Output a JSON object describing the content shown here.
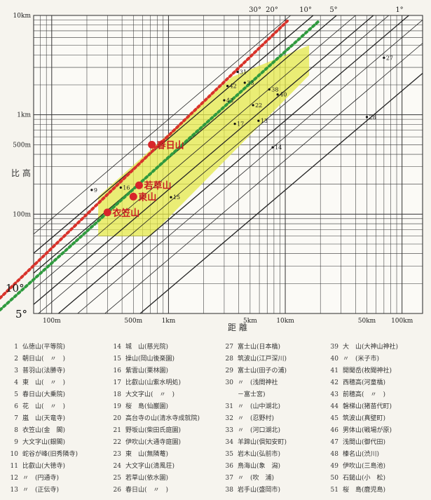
{
  "chart_data": {
    "type": "scatter",
    "xlabel": "距 離",
    "ylabel": "比 高",
    "x_scale": "log",
    "y_scale": "log",
    "xlim": [
      70,
      150000
    ],
    "ylim": [
      10,
      10000
    ],
    "x_tick_labels": [
      {
        "value": 100,
        "label": "100m"
      },
      {
        "value": 500,
        "label": "500m"
      },
      {
        "value": 1000,
        "label": "1km"
      },
      {
        "value": 5000,
        "label": "5km"
      },
      {
        "value": 10000,
        "label": "10km"
      },
      {
        "value": 50000,
        "label": "50km"
      },
      {
        "value": 100000,
        "label": "100km"
      }
    ],
    "y_tick_labels": [
      {
        "value": 10000,
        "label": "10km"
      },
      {
        "value": 1000,
        "label": "1km"
      },
      {
        "value": 500,
        "label": "500m"
      },
      {
        "value": 100,
        "label": "100m"
      }
    ],
    "angle_lines": [
      {
        "label": "30°",
        "ratio": 0.577
      },
      {
        "label": "20°",
        "ratio": 0.364
      },
      {
        "label": "10°",
        "ratio": 0.176
      },
      {
        "label": "5°",
        "ratio": 0.0875
      },
      {
        "label": "1°",
        "ratio": 0.01745
      }
    ],
    "dotted_lines": [
      {
        "label": "10°",
        "color": "#d8322a"
      },
      {
        "label": "5°",
        "color": "#2f9a3e"
      }
    ],
    "highlight_band": {
      "color": "#e4e84a"
    },
    "highlighted_points": [
      {
        "name": "春日山",
        "x": 720,
        "y": 500
      },
      {
        "name": "若草山",
        "x": 560,
        "y": 195
      },
      {
        "name": "東山",
        "x": 500,
        "y": 150
      },
      {
        "name": "衣笠山",
        "x": 300,
        "y": 104
      }
    ],
    "points": [
      {
        "label": "9",
        "x": 220,
        "y": 175
      },
      {
        "label": "14",
        "x": 7800,
        "y": 470
      },
      {
        "label": "15",
        "x": 1050,
        "y": 148
      },
      {
        "label": "16",
        "x": 390,
        "y": 185
      },
      {
        "label": "17",
        "x": 3700,
        "y": 810
      },
      {
        "label": "22",
        "x": 5300,
        "y": 1250
      },
      {
        "label": "27",
        "x": 70000,
        "y": 3750
      },
      {
        "label": "28",
        "x": 50000,
        "y": 950
      },
      {
        "label": "31",
        "x": 3900,
        "y": 2700
      },
      {
        "label": "33",
        "x": 4500,
        "y": 2100
      },
      {
        "label": "38",
        "x": 7300,
        "y": 1800
      },
      {
        "label": "40",
        "x": 8600,
        "y": 1600
      },
      {
        "label": "42",
        "x": 3200,
        "y": 1950
      },
      {
        "label": "43",
        "x": 3000,
        "y": 1400
      },
      {
        "label": "13",
        "x": 5900,
        "y": 870
      }
    ]
  },
  "legend": {
    "items": [
      {
        "num": "1",
        "text": "仏徳山(平等院)"
      },
      {
        "num": "2",
        "text": "朝日山(　〃　)"
      },
      {
        "num": "3",
        "text": "普羽山(法勝寺)"
      },
      {
        "num": "4",
        "text": "東　山(　〃　)"
      },
      {
        "num": "5",
        "text": "春日山(大乗院)"
      },
      {
        "num": "6",
        "text": "花　山(　〃　)"
      },
      {
        "num": "7",
        "text": "嵐　山(天竜寺)"
      },
      {
        "num": "8",
        "text": "衣笠山(金　閣)"
      },
      {
        "num": "9",
        "text": "大文字山(銀閣)"
      },
      {
        "num": "10",
        "text": "蛇谷が峰(旧秀隣寺)"
      },
      {
        "num": "11",
        "text": "比叡山(大徳寺)"
      },
      {
        "num": "12",
        "text": "〃　(円通寺)"
      },
      {
        "num": "13",
        "text": "〃　(正伝寺)"
      },
      {
        "num": "14",
        "text": "城　山(慈光院)"
      },
      {
        "num": "15",
        "text": "操山(岡山後楽園)"
      },
      {
        "num": "16",
        "text": "紫雲山(栗林園)"
      },
      {
        "num": "17",
        "text": "比叡山(山紫水明処)"
      },
      {
        "num": "18",
        "text": "大文字山(　〃　)"
      },
      {
        "num": "19",
        "text": "桜　島(仙巌園)"
      },
      {
        "num": "20",
        "text": "高台寺の山(清水寺成就院)"
      },
      {
        "num": "21",
        "text": "野坂山(柴田氏庭園)"
      },
      {
        "num": "22",
        "text": "伊吹山(大通寺庭園)"
      },
      {
        "num": "23",
        "text": "東　山(無隣菴)"
      },
      {
        "num": "24",
        "text": "大文字山(清風荘)"
      },
      {
        "num": "25",
        "text": "若草山(依水園)"
      },
      {
        "num": "26",
        "text": "春日山(　〃　)"
      },
      {
        "num": "27",
        "text": "富士山(日本橋)"
      },
      {
        "num": "28",
        "text": "筑波山(江戸深川)"
      },
      {
        "num": "29",
        "text": "富士山(田子の浦)"
      },
      {
        "num": "30",
        "text": "〃　(浅間神社"
      },
      {
        "num": "",
        "text": "－富士宮)"
      },
      {
        "num": "31",
        "text": "〃　(山中湖北)"
      },
      {
        "num": "32",
        "text": "〃　(忍野村)"
      },
      {
        "num": "33",
        "text": "〃　(河口湖北)"
      },
      {
        "num": "34",
        "text": "羊蹄山(倶知安町)"
      },
      {
        "num": "35",
        "text": "岩木山(弘前市)"
      },
      {
        "num": "36",
        "text": "鳥海山(象　潟)"
      },
      {
        "num": "37",
        "text": "〃　(吹　浦)"
      },
      {
        "num": "38",
        "text": "岩手山(盛岡市)"
      },
      {
        "num": "39",
        "text": "大　山(大神山神社)"
      },
      {
        "num": "40",
        "text": "〃　(米子市)"
      },
      {
        "num": "41",
        "text": "開聞岳(枚聞神社)"
      },
      {
        "num": "42",
        "text": "西穂高(河童橋)"
      },
      {
        "num": "43",
        "text": "前穂高(　〃　)"
      },
      {
        "num": "44",
        "text": "磐梯山(猪苗代町)"
      },
      {
        "num": "45",
        "text": "筑波山(真壁町)"
      },
      {
        "num": "46",
        "text": "男体山(戦場が原)"
      },
      {
        "num": "47",
        "text": "浅間山(御代田)"
      },
      {
        "num": "48",
        "text": "榛名山(渋川)"
      },
      {
        "num": "49",
        "text": "伊吹山(三島池)"
      },
      {
        "num": "50",
        "text": "石鎚山(小　松)"
      },
      {
        "num": "51",
        "text": "桜　島(鹿児島)"
      }
    ]
  }
}
